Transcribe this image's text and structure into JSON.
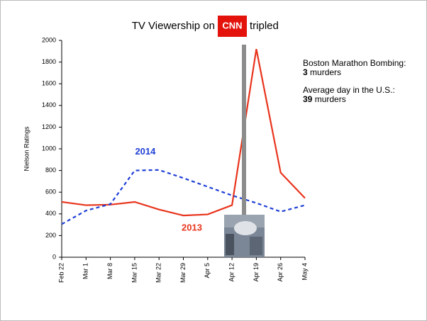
{
  "chart_data": {
    "type": "line",
    "title": "TV Viewership on",
    "title_logo": "CNN",
    "title_end": "tripled",
    "y_label": "Nielson Ratings",
    "categories": [
      "Feb 22",
      "Mar 1",
      "Mar 8",
      "Mar 15",
      "Mar 22",
      "Mar 29",
      "Apr 5",
      "Apr 12",
      "Apr 19",
      "Apr 26",
      "May 4"
    ],
    "series": [
      {
        "name": "2013",
        "color": "#e8341c",
        "dash": false,
        "values": [
          510,
          480,
          485,
          510,
          440,
          385,
          395,
          480,
          1920,
          780,
          545
        ]
      },
      {
        "name": "2014",
        "color": "#1f3fd6",
        "dash": true,
        "values": [
          305,
          430,
          490,
          800,
          805,
          730,
          650,
          570,
          500,
          420,
          480
        ]
      }
    ],
    "ylim": [
      0,
      2000
    ],
    "yticks": [
      0,
      200,
      400,
      600,
      800,
      1000,
      1200,
      1400,
      1600,
      1800,
      2000
    ],
    "annotations": [
      {
        "heading": "Boston Marathon Bombing:",
        "number": 3,
        "unit": "murders"
      },
      {
        "heading": "Average day in the U.S.:",
        "number": 39,
        "unit": "murders"
      }
    ]
  }
}
